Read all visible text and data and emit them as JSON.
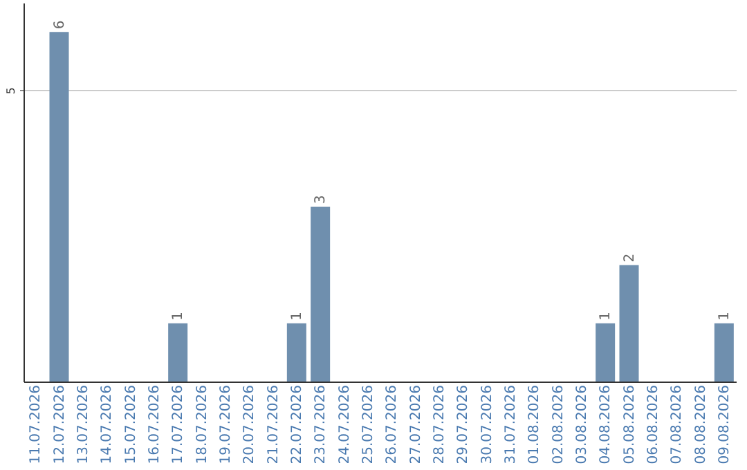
{
  "chart_data": {
    "type": "bar",
    "categories": [
      "11.07.2026",
      "12.07.2026",
      "13.07.2026",
      "14.07.2026",
      "15.07.2026",
      "16.07.2026",
      "17.07.2026",
      "18.07.2026",
      "19.07.2026",
      "20.07.2026",
      "21.07.2026",
      "22.07.2026",
      "23.07.2026",
      "24.07.2026",
      "25.07.2026",
      "26.07.2026",
      "27.07.2026",
      "28.07.2026",
      "29.07.2026",
      "30.07.2026",
      "31.07.2026",
      "01.08.2026",
      "02.08.2026",
      "03.08.2026",
      "04.08.2026",
      "05.08.2026",
      "06.08.2026",
      "07.08.2026",
      "08.08.2026",
      "09.08.2026"
    ],
    "values": [
      0,
      6,
      0,
      0,
      0,
      0,
      1,
      0,
      0,
      0,
      0,
      1,
      3,
      0,
      0,
      0,
      0,
      0,
      0,
      0,
      0,
      0,
      0,
      0,
      1,
      2,
      0,
      0,
      0,
      1
    ],
    "value_labels": [
      null,
      "6",
      null,
      null,
      null,
      null,
      "1",
      null,
      null,
      null,
      null,
      "1",
      "3",
      null,
      null,
      null,
      null,
      null,
      null,
      null,
      null,
      null,
      null,
      null,
      "1",
      "2",
      null,
      null,
      null,
      "1"
    ],
    "color": "#6f8fae",
    "ylim": [
      0,
      6.5
    ],
    "yticks": [
      5
    ],
    "grid": "y"
  }
}
